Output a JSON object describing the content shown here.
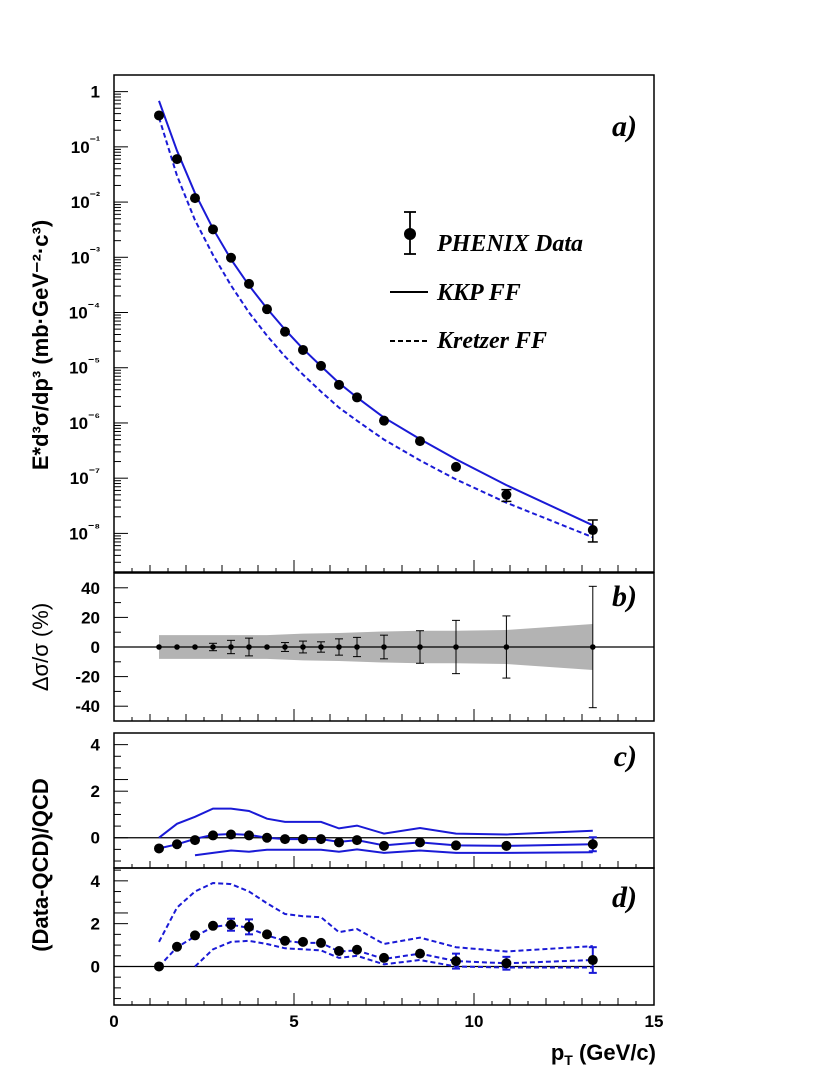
{
  "chart_data": [
    {
      "panel": "a",
      "type": "scatter",
      "panel_label": "a)",
      "ylabel": "E*d³σ/dp³ (mb·GeV⁻²·c³)",
      "yscale": "log",
      "ylim": [
        2e-09,
        2
      ],
      "xlim": [
        0,
        15
      ],
      "y_tick_labels": [
        "1",
        "10⁻¹",
        "10⁻²",
        "10⁻³",
        "10⁻⁴",
        "10⁻⁵",
        "10⁻⁶",
        "10⁻⁷",
        "10⁻⁸"
      ],
      "legend": {
        "placement": "right-center",
        "entries": [
          "PHENIX Data",
          "KKP FF",
          "Kretzer FF"
        ]
      },
      "series": [
        {
          "name": "PHENIX Data",
          "style": "points",
          "x": [
            1.25,
            1.75,
            2.25,
            2.75,
            3.25,
            3.75,
            4.25,
            4.75,
            5.25,
            5.75,
            6.25,
            6.75,
            7.5,
            8.5,
            9.5,
            10.9,
            13.3
          ],
          "y": [
            0.37,
            0.06,
            0.0118,
            0.0032,
            0.00098,
            0.00033,
            0.000115,
            4.5e-05,
            2.1e-05,
            1.08e-05,
            4.9e-06,
            2.9e-06,
            1.1e-06,
            4.7e-07,
            1.6e-07,
            5e-08,
            1.15e-08
          ],
          "yerr_low": [
            0,
            0,
            0,
            0,
            0,
            0,
            0,
            0,
            0,
            0,
            0,
            0,
            0,
            0,
            0,
            1.2e-08,
            4.5e-09
          ],
          "yerr_high": [
            0,
            0,
            0,
            0,
            0,
            0,
            0,
            0,
            0,
            0,
            0,
            0,
            0,
            0,
            0,
            1.2e-08,
            6e-09
          ]
        },
        {
          "name": "KKP FF",
          "style": "solid",
          "x": [
            1.25,
            1.75,
            2.25,
            2.75,
            3.25,
            3.75,
            4.25,
            4.75,
            5.25,
            5.75,
            6.25,
            6.75,
            7.5,
            8.5,
            9.5,
            10.9,
            13.3
          ],
          "y": [
            0.68,
            0.085,
            0.0145,
            0.0033,
            0.00092,
            0.00031,
            0.000118,
            4.9e-05,
            2.2e-05,
            1.07e-05,
            5.3e-06,
            2.9e-06,
            1.25e-06,
            5.1e-07,
            2.2e-07,
            7.5e-08,
            1.4e-08
          ]
        },
        {
          "name": "Kretzer FF",
          "style": "dashed",
          "x": [
            1.25,
            1.75,
            2.25,
            2.75,
            3.25,
            3.75,
            4.25,
            4.75,
            5.25,
            5.75,
            6.25,
            6.75,
            7.5,
            8.5,
            9.5,
            10.9,
            13.3
          ],
          "y": [
            0.34,
            0.03,
            0.0047,
            0.0011,
            0.00031,
            0.0001,
            3.8e-05,
            1.6e-05,
            7.5e-06,
            3.7e-06,
            1.9e-06,
            1.1e-06,
            5e-07,
            2.1e-07,
            9.5e-08,
            3.6e-08,
            8.5e-09
          ]
        }
      ]
    },
    {
      "panel": "b",
      "type": "scatter",
      "panel_label": "b)",
      "ylabel": "Δσ/σ (%)",
      "ylim": [
        -50,
        50
      ],
      "xlim": [
        0,
        15
      ],
      "y_tick_labels": [
        "40",
        "20",
        "0",
        "-20",
        "-40"
      ],
      "y_ticks": [
        40,
        20,
        0,
        -20,
        -40
      ],
      "band": {
        "x": [
          1.25,
          2.25,
          3.25,
          4.25,
          5.25,
          6.25,
          7.5,
          8.5,
          9.5,
          10.9,
          13.3
        ],
        "upper": [
          8,
          8,
          8,
          8,
          9,
          9.5,
          10.5,
          11,
          11,
          11.5,
          15.5
        ],
        "lower": [
          -8,
          -8,
          -8,
          -8,
          -9,
          -9.5,
          -10.5,
          -11,
          -11,
          -11.5,
          -15.5
        ]
      },
      "series": [
        {
          "name": "",
          "style": "points",
          "x": [
            1.25,
            1.75,
            2.25,
            2.75,
            3.25,
            3.75,
            4.25,
            4.75,
            5.25,
            5.75,
            6.25,
            6.75,
            7.5,
            8.5,
            9.5,
            10.9,
            13.3
          ],
          "y": [
            0,
            0,
            0,
            0,
            0,
            0,
            0,
            0,
            0,
            0,
            0,
            0,
            0,
            0,
            0,
            0,
            0
          ],
          "yerr": [
            0,
            0,
            0,
            2.5,
            4.5,
            6,
            0,
            3,
            4,
            3.5,
            5.5,
            6.5,
            8,
            11,
            18,
            21,
            41
          ]
        }
      ]
    },
    {
      "panel": "c",
      "type": "scatter",
      "panel_label": "c)",
      "ylabel": "(Data-QCD)/QCD",
      "ylim": [
        -1.3,
        4.5
      ],
      "xlim": [
        0,
        15
      ],
      "y_tick_labels": [
        "4",
        "2",
        "0"
      ],
      "y_ticks": [
        4,
        2,
        0
      ],
      "series": [
        {
          "name": "",
          "style": "points",
          "x": [
            1.25,
            1.75,
            2.25,
            2.75,
            3.25,
            3.75,
            4.25,
            4.75,
            5.25,
            5.75,
            6.25,
            6.75,
            7.5,
            8.5,
            9.5,
            10.9,
            13.3
          ],
          "y": [
            -0.46,
            -0.28,
            -0.1,
            0.1,
            0.14,
            0.1,
            0.0,
            -0.06,
            -0.06,
            -0.06,
            -0.2,
            -0.1,
            -0.35,
            -0.2,
            -0.33,
            -0.35,
            -0.28
          ],
          "yerr": [
            0,
            0,
            0,
            0,
            0,
            0,
            0,
            0,
            0,
            0,
            0,
            0,
            0,
            0,
            0,
            0,
            0.3
          ]
        },
        {
          "name": "",
          "style": "solid",
          "x": [
            1.25,
            1.75,
            2.25,
            2.75,
            3.25,
            3.75,
            4.25,
            4.75,
            5.25,
            5.75,
            6.25,
            6.75,
            7.5,
            8.5,
            9.5,
            10.9,
            13.3
          ],
          "y": [
            0.0,
            0.6,
            0.9,
            1.25,
            1.25,
            1.15,
            0.82,
            0.68,
            0.68,
            0.68,
            0.4,
            0.52,
            0.18,
            0.42,
            0.18,
            0.14,
            0.3
          ]
        },
        {
          "name": "",
          "style": "solid",
          "x": [
            1.25,
            1.75,
            2.25,
            2.75,
            3.25,
            3.75,
            4.25,
            4.75,
            5.25,
            5.75,
            6.25,
            6.75,
            7.5,
            8.5,
            9.5,
            10.9,
            13.3
          ],
          "y": [
            -0.46,
            -0.28,
            -0.05,
            0.12,
            0.16,
            0.12,
            0.0,
            -0.06,
            -0.06,
            -0.06,
            -0.18,
            -0.1,
            -0.33,
            -0.2,
            -0.33,
            -0.35,
            -0.28
          ]
        },
        {
          "name": "",
          "style": "solid",
          "x": [
            2.25,
            2.75,
            3.25,
            3.75,
            4.25,
            4.75,
            5.25,
            5.75,
            6.25,
            6.75,
            7.5,
            8.5,
            9.5,
            10.9,
            13.3
          ],
          "y": [
            -0.75,
            -0.65,
            -0.55,
            -0.6,
            -0.52,
            -0.52,
            -0.52,
            -0.52,
            -0.6,
            -0.5,
            -0.65,
            -0.55,
            -0.65,
            -0.65,
            -0.62
          ]
        }
      ]
    },
    {
      "panel": "d",
      "type": "scatter",
      "panel_label": "d)",
      "ylim": [
        -1.8,
        4.6
      ],
      "xlim": [
        0,
        15
      ],
      "xlabel": "p_T (GeV/c)",
      "x_tick_labels": [
        "0",
        "5",
        "10",
        "15"
      ],
      "x_ticks": [
        0,
        5,
        10,
        15
      ],
      "y_tick_labels": [
        "4",
        "2",
        "0"
      ],
      "y_ticks": [
        4,
        2,
        0
      ],
      "series": [
        {
          "name": "",
          "style": "points",
          "x": [
            1.25,
            1.75,
            2.25,
            2.75,
            3.25,
            3.75,
            4.25,
            4.75,
            5.25,
            5.75,
            6.25,
            6.75,
            7.5,
            8.5,
            9.5,
            10.9,
            13.3
          ],
          "y": [
            0.0,
            0.92,
            1.45,
            1.9,
            1.95,
            1.85,
            1.5,
            1.2,
            1.15,
            1.1,
            0.72,
            0.78,
            0.4,
            0.6,
            0.25,
            0.15,
            0.3
          ],
          "yerr": [
            0,
            0,
            0,
            0,
            0.28,
            0.35,
            0,
            0,
            0,
            0,
            0,
            0,
            0,
            0,
            0.35,
            0.3,
            0.6
          ]
        },
        {
          "name": "",
          "style": "dashed",
          "x": [
            1.25,
            1.75,
            2.25,
            2.75,
            3.25,
            3.75,
            4.25,
            4.75,
            5.25,
            5.75,
            6.25,
            6.75,
            7.5,
            8.5,
            9.5,
            10.9,
            13.3
          ],
          "y": [
            1.15,
            2.75,
            3.5,
            3.9,
            3.85,
            3.5,
            2.95,
            2.45,
            2.35,
            2.3,
            1.6,
            1.75,
            1.05,
            1.35,
            0.9,
            0.7,
            0.95
          ]
        },
        {
          "name": "",
          "style": "dashed",
          "x": [
            1.25,
            1.75,
            2.25,
            2.75,
            3.25,
            3.75,
            4.25,
            4.75,
            5.25,
            5.75,
            6.25,
            6.75,
            7.5,
            8.5,
            9.5,
            10.9,
            13.3
          ],
          "y": [
            0.0,
            0.9,
            1.4,
            1.85,
            1.95,
            1.8,
            1.45,
            1.2,
            1.1,
            1.1,
            0.7,
            0.75,
            0.35,
            0.6,
            0.25,
            0.15,
            0.3
          ]
        },
        {
          "name": "",
          "style": "dashed",
          "x": [
            2.25,
            2.75,
            3.25,
            3.75,
            4.25,
            4.75,
            5.25,
            5.75,
            6.25,
            6.75,
            7.5,
            8.5,
            9.5,
            10.9,
            13.3
          ],
          "y": [
            0.0,
            0.8,
            1.15,
            1.2,
            1.05,
            0.85,
            0.8,
            0.75,
            0.4,
            0.5,
            0.1,
            0.3,
            0.0,
            -0.05,
            -0.05
          ]
        }
      ]
    }
  ]
}
